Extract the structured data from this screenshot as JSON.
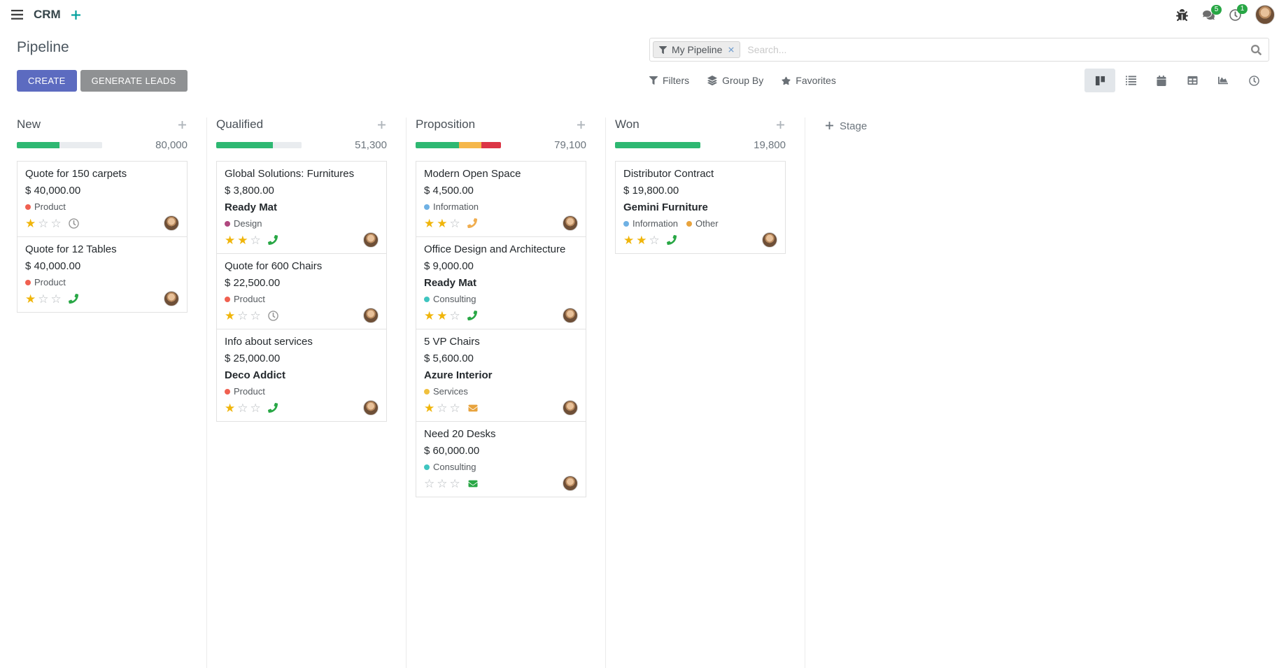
{
  "topbar": {
    "app_name": "CRM",
    "message_count": "5",
    "activity_count": "1"
  },
  "control_panel": {
    "title": "Pipeline",
    "create_label": "CREATE",
    "generate_leads_label": "GENERATE LEADS",
    "search": {
      "facet_label": "My Pipeline",
      "placeholder": "Search..."
    },
    "filters_label": "Filters",
    "group_by_label": "Group By",
    "favorites_label": "Favorites",
    "view_switcher": [
      {
        "name": "kanban",
        "active": true
      },
      {
        "name": "list",
        "active": false
      },
      {
        "name": "calendar",
        "active": false
      },
      {
        "name": "pivot",
        "active": false
      },
      {
        "name": "graph",
        "active": false
      },
      {
        "name": "activity",
        "active": false
      }
    ]
  },
  "kanban": {
    "add_stage_label": "Stage",
    "columns": [
      {
        "name": "New",
        "total": "80,000",
        "progress": [
          {
            "color": "#2eb872",
            "pct": 50
          },
          {
            "color": "#e9ecef",
            "pct": 50
          }
        ],
        "cards": [
          {
            "title": "Quote for 150 carpets",
            "amount": "$ 40,000.00",
            "tags": [
              {
                "label": "Product",
                "color": "#f06050"
              }
            ],
            "stars": 1,
            "activity": {
              "type": "clock",
              "color": "#979797"
            }
          },
          {
            "title": "Quote for 12 Tables",
            "amount": "$ 40,000.00",
            "tags": [
              {
                "label": "Product",
                "color": "#f06050"
              }
            ],
            "stars": 1,
            "activity": {
              "type": "phone",
              "color": "#28a745"
            }
          }
        ]
      },
      {
        "name": "Qualified",
        "total": "51,300",
        "progress": [
          {
            "color": "#2eb872",
            "pct": 66
          },
          {
            "color": "#e9ecef",
            "pct": 34
          }
        ],
        "cards": [
          {
            "title": "Global Solutions: Furnitures",
            "amount": "$ 3,800.00",
            "partner": "Ready Mat",
            "tags": [
              {
                "label": "Design",
                "color": "#b0487f"
              }
            ],
            "stars": 2,
            "activity": {
              "type": "phone",
              "color": "#28a745"
            }
          },
          {
            "title": "Quote for 600 Chairs",
            "amount": "$ 22,500.00",
            "tags": [
              {
                "label": "Product",
                "color": "#f06050"
              }
            ],
            "stars": 1,
            "activity": {
              "type": "clock",
              "color": "#979797"
            }
          },
          {
            "title": "Info about services",
            "amount": "$ 25,000.00",
            "partner": "Deco Addict",
            "tags": [
              {
                "label": "Product",
                "color": "#f06050"
              }
            ],
            "stars": 1,
            "activity": {
              "type": "phone",
              "color": "#28a745"
            }
          }
        ]
      },
      {
        "name": "Proposition",
        "total": "79,100",
        "progress": [
          {
            "color": "#2eb872",
            "pct": 51
          },
          {
            "color": "#f5b74a",
            "pct": 26
          },
          {
            "color": "#dc3545",
            "pct": 23
          }
        ],
        "cards": [
          {
            "title": "Modern Open Space",
            "amount": "$ 4,500.00",
            "tags": [
              {
                "label": "Information",
                "color": "#6fb1e4"
              }
            ],
            "stars": 2,
            "activity": {
              "type": "phone",
              "color": "#f0ad4e"
            }
          },
          {
            "title": "Office Design and Architecture",
            "amount": "$ 9,000.00",
            "partner": "Ready Mat",
            "tags": [
              {
                "label": "Consulting",
                "color": "#3fc5c0"
              }
            ],
            "stars": 2,
            "activity": {
              "type": "phone",
              "color": "#28a745"
            }
          },
          {
            "title": "5 VP Chairs",
            "amount": "$ 5,600.00",
            "partner": "Azure Interior",
            "tags": [
              {
                "label": "Services",
                "color": "#f0c03d"
              }
            ],
            "stars": 1,
            "activity": {
              "type": "envelope",
              "color": "#e8a33d"
            }
          },
          {
            "title": "Need 20 Desks",
            "amount": "$ 60,000.00",
            "tags": [
              {
                "label": "Consulting",
                "color": "#3fc5c0"
              }
            ],
            "stars": 0,
            "activity": {
              "type": "envelope",
              "color": "#28a745"
            }
          }
        ]
      },
      {
        "name": "Won",
        "total": "19,800",
        "progress": [
          {
            "color": "#2eb872",
            "pct": 100
          }
        ],
        "cards": [
          {
            "title": "Distributor Contract",
            "amount": "$ 19,800.00",
            "partner": "Gemini Furniture",
            "tags": [
              {
                "label": "Information",
                "color": "#6fb1e4"
              },
              {
                "label": "Other",
                "color": "#e8a33d"
              }
            ],
            "stars": 2,
            "activity": {
              "type": "phone",
              "color": "#28a745"
            }
          }
        ]
      }
    ]
  },
  "colors": {
    "primary_button": "#5c6bc0",
    "secondary_button": "#8f9193",
    "badge_green": "#28a745",
    "progress_green": "#2eb872",
    "progress_yellow": "#f5b74a",
    "progress_red": "#dc3545",
    "star_gold": "#f0b50a"
  }
}
